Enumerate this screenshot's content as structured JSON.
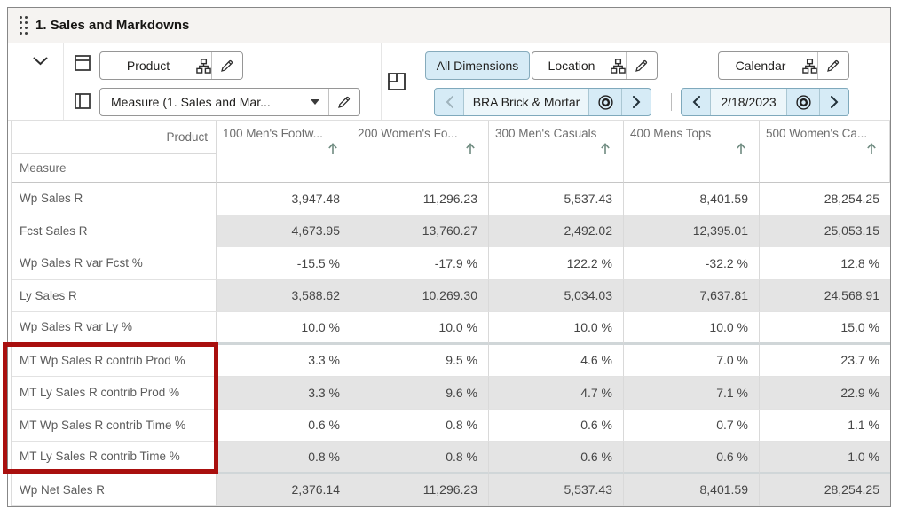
{
  "window": {
    "title": "1. Sales and Markdowns"
  },
  "toolbar": {
    "row_axis_label": "Product",
    "col_axis_label": "Measure (1. Sales and Mar...",
    "all_dimensions": "All Dimensions",
    "location_label": "Location",
    "calendar_label": "Calendar",
    "location_value": "BRA Brick & Mortar",
    "calendar_value": "2/18/2023"
  },
  "icons": {
    "drag_handle": "dot-grid",
    "collapse": "chevron-down",
    "row_axis": "table-row-split",
    "col_axis": "table-column-split",
    "hierarchy": "org-chart",
    "edit": "pencil",
    "dropdown": "caret-down",
    "page_edge": "frame-corner",
    "scope": "bullseye",
    "prev": "chevron-left",
    "next": "chevron-right",
    "sort": "arrow-up"
  },
  "colors": {
    "highlight_red": "#a90f0e",
    "selection_blue": "#d6ebf6",
    "shaded_cell": "#e4e4e4",
    "sort_arrow": "#6f8b80",
    "titlebar_bg": "#f5f3f1"
  },
  "table": {
    "corner": {
      "column_dimension": "Product",
      "row_dimension": "Measure"
    },
    "columns": [
      "100 Men's Footw...",
      "200 Women's Fo...",
      "300 Men's Casuals",
      "400 Mens Tops",
      "500 Women's Ca..."
    ],
    "rows": [
      {
        "label": "Wp Sales R",
        "shaded": false,
        "highlighted": false,
        "group_end": false,
        "values": [
          "3,947.48",
          "11,296.23",
          "5,537.43",
          "8,401.59",
          "28,254.25"
        ]
      },
      {
        "label": "Fcst Sales R",
        "shaded": true,
        "highlighted": false,
        "group_end": false,
        "values": [
          "4,673.95",
          "13,760.27",
          "2,492.02",
          "12,395.01",
          "25,053.15"
        ]
      },
      {
        "label": "Wp Sales R var Fcst %",
        "shaded": false,
        "highlighted": false,
        "group_end": false,
        "values": [
          "-15.5 %",
          "-17.9 %",
          "122.2 %",
          "-32.2 %",
          "12.8 %"
        ]
      },
      {
        "label": "Ly Sales R",
        "shaded": true,
        "highlighted": false,
        "group_end": false,
        "values": [
          "3,588.62",
          "10,269.30",
          "5,034.03",
          "7,637.81",
          "24,568.91"
        ]
      },
      {
        "label": "Wp Sales R var Ly %",
        "shaded": false,
        "highlighted": false,
        "group_end": true,
        "values": [
          "10.0 %",
          "10.0 %",
          "10.0 %",
          "10.0 %",
          "15.0 %"
        ]
      },
      {
        "label": "MT Wp Sales R contrib Prod %",
        "shaded": false,
        "highlighted": true,
        "group_end": false,
        "values": [
          "3.3 %",
          "9.5 %",
          "4.6 %",
          "7.0 %",
          "23.7 %"
        ]
      },
      {
        "label": "MT Ly Sales R contrib Prod %",
        "shaded": true,
        "highlighted": true,
        "group_end": false,
        "values": [
          "3.3 %",
          "9.6 %",
          "4.7 %",
          "7.1 %",
          "22.9 %"
        ]
      },
      {
        "label": "MT Wp Sales R contrib Time %",
        "shaded": false,
        "highlighted": true,
        "group_end": false,
        "values": [
          "0.6 %",
          "0.8 %",
          "0.6 %",
          "0.7 %",
          "1.1 %"
        ]
      },
      {
        "label": "MT Ly Sales R contrib Time %",
        "shaded": true,
        "highlighted": true,
        "group_end": true,
        "values": [
          "0.8 %",
          "0.8 %",
          "0.6 %",
          "0.6 %",
          "1.0 %"
        ]
      },
      {
        "label": "Wp Net Sales R",
        "shaded": true,
        "highlighted": false,
        "group_end": false,
        "values": [
          "2,376.14",
          "11,296.23",
          "5,537.43",
          "8,401.59",
          "28,254.25"
        ]
      }
    ]
  }
}
